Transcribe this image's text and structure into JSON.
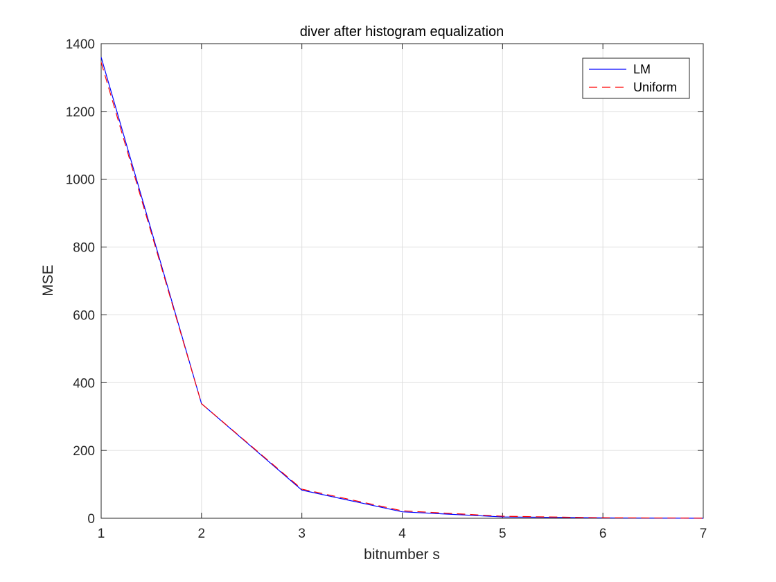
{
  "chart_data": {
    "type": "line",
    "title": "diver after histogram equalization",
    "xlabel": "bitnumber s",
    "ylabel": "MSE",
    "xlim": [
      1,
      7
    ],
    "ylim": [
      0,
      1400
    ],
    "xticks": [
      1,
      2,
      3,
      4,
      5,
      6,
      7
    ],
    "yticks": [
      0,
      200,
      400,
      600,
      800,
      1000,
      1200,
      1400
    ],
    "x": [
      1,
      2,
      3,
      4,
      5,
      6,
      7
    ],
    "grid": true,
    "legend_position": "top-right",
    "series": [
      {
        "name": "LM",
        "values": [
          1360,
          338,
          83,
          19,
          4,
          1,
          0
        ],
        "color": "#0000ff",
        "style": "solid"
      },
      {
        "name": "Uniform",
        "values": [
          1345,
          338,
          86,
          22,
          6,
          1.5,
          0.3
        ],
        "color": "#ff0000",
        "style": "dashed"
      }
    ]
  }
}
